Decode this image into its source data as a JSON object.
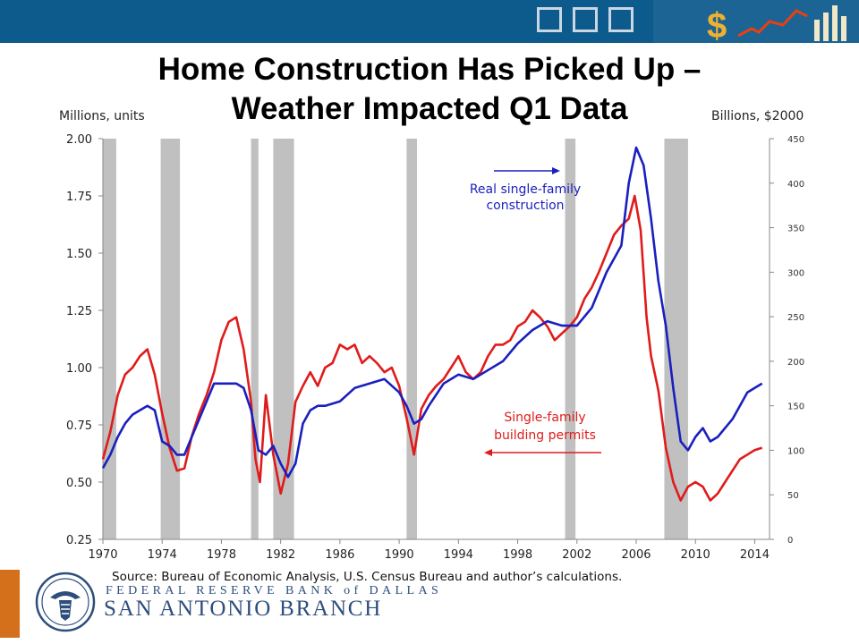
{
  "title_line1": "Home Construction Has Picked Up –",
  "title_line2": "Weather Impacted Q1 Data",
  "source": "Source: Bureau of Economic Analysis, U.S. Census Bureau and author’s calculations.",
  "footer": {
    "bank_name": "FEDERAL RESERVE BANK of DALLAS",
    "branch_name": "SAN ANTONIO BRANCH"
  },
  "colors": {
    "header_band": "#0d5a8c",
    "permits": "#e01b1b",
    "construction": "#1a1fbf",
    "recession": "#c0c0c0",
    "logo": "#2d4e7c"
  },
  "chart_data": {
    "type": "line",
    "left_axis_label": "Millions, units",
    "right_axis_label": "Billions, $2000",
    "x_range": [
      1970,
      2015
    ],
    "x_ticks": [
      "1970",
      "1974",
      "1978",
      "1982",
      "1986",
      "1990",
      "1994",
      "1998",
      "2002",
      "2006",
      "2010",
      "2014"
    ],
    "ylim_left": [
      0.25,
      2.0
    ],
    "y_ticks_left": [
      "0.25",
      "0.50",
      "0.75",
      "1.00",
      "1.25",
      "1.50",
      "1.75",
      "2.00"
    ],
    "ylim_right": [
      0,
      450
    ],
    "y_ticks_right": [
      "0",
      "50",
      "100",
      "150",
      "200",
      "250",
      "300",
      "350",
      "400",
      "450"
    ],
    "grid": false,
    "recession_periods": [
      [
        1970.0,
        1970.9
      ],
      [
        1973.9,
        1975.2
      ],
      [
        1980.0,
        1980.5
      ],
      [
        1981.5,
        1982.9
      ],
      [
        1990.5,
        1991.2
      ],
      [
        2001.2,
        2001.9
      ],
      [
        2007.9,
        2009.5
      ]
    ],
    "annotations": [
      {
        "text": "Real single-family construction",
        "arrow": "right"
      },
      {
        "text": "Single-family building permits",
        "arrow": "left"
      }
    ],
    "series": [
      {
        "name": "Single-family building permits",
        "axis": "left",
        "x": [
          1970.0,
          1970.5,
          1971.0,
          1971.5,
          1972.0,
          1972.5,
          1973.0,
          1973.5,
          1974.0,
          1974.5,
          1975.0,
          1975.5,
          1976.0,
          1976.5,
          1977.0,
          1977.5,
          1978.0,
          1978.5,
          1979.0,
          1979.5,
          1980.0,
          1980.3,
          1980.6,
          1981.0,
          1981.5,
          1982.0,
          1982.5,
          1983.0,
          1983.5,
          1984.0,
          1984.5,
          1985.0,
          1985.5,
          1986.0,
          1986.5,
          1987.0,
          1987.5,
          1988.0,
          1988.5,
          1989.0,
          1989.5,
          1990.0,
          1990.5,
          1991.0,
          1991.5,
          1992.0,
          1992.5,
          1993.0,
          1993.5,
          1994.0,
          1994.5,
          1995.0,
          1995.5,
          1996.0,
          1996.5,
          1997.0,
          1997.5,
          1998.0,
          1998.5,
          1999.0,
          1999.5,
          2000.0,
          2000.5,
          2001.0,
          2001.5,
          2002.0,
          2002.5,
          2003.0,
          2003.5,
          2004.0,
          2004.5,
          2005.0,
          2005.5,
          2005.9,
          2006.3,
          2006.7,
          2007.0,
          2007.5,
          2008.0,
          2008.5,
          2009.0,
          2009.5,
          2010.0,
          2010.5,
          2011.0,
          2011.5,
          2012.0,
          2012.5,
          2013.0,
          2013.5,
          2014.0,
          2014.5
        ],
        "values": [
          0.6,
          0.72,
          0.88,
          0.97,
          1.0,
          1.05,
          1.08,
          0.97,
          0.8,
          0.65,
          0.55,
          0.56,
          0.7,
          0.8,
          0.88,
          0.98,
          1.12,
          1.2,
          1.22,
          1.08,
          0.85,
          0.6,
          0.5,
          0.88,
          0.62,
          0.45,
          0.58,
          0.85,
          0.92,
          0.98,
          0.92,
          1.0,
          1.02,
          1.1,
          1.08,
          1.1,
          1.02,
          1.05,
          1.02,
          0.98,
          1.0,
          0.92,
          0.78,
          0.62,
          0.82,
          0.88,
          0.92,
          0.95,
          1.0,
          1.05,
          0.98,
          0.95,
          0.98,
          1.05,
          1.1,
          1.1,
          1.12,
          1.18,
          1.2,
          1.25,
          1.22,
          1.18,
          1.12,
          1.15,
          1.18,
          1.22,
          1.3,
          1.35,
          1.42,
          1.5,
          1.58,
          1.62,
          1.65,
          1.75,
          1.6,
          1.22,
          1.05,
          0.9,
          0.65,
          0.5,
          0.42,
          0.48,
          0.5,
          0.48,
          0.42,
          0.45,
          0.5,
          0.55,
          0.6,
          0.62,
          0.64,
          0.65
        ]
      },
      {
        "name": "Real single-family construction",
        "axis": "right",
        "x": [
          1970.0,
          1970.5,
          1971.0,
          1971.5,
          1972.0,
          1972.5,
          1973.0,
          1973.5,
          1974.0,
          1974.5,
          1975.0,
          1975.5,
          1976.0,
          1976.5,
          1977.0,
          1977.5,
          1978.0,
          1978.5,
          1979.0,
          1979.5,
          1980.0,
          1980.5,
          1981.0,
          1981.5,
          1982.0,
          1982.5,
          1983.0,
          1983.5,
          1984.0,
          1984.5,
          1985.0,
          1986.0,
          1987.0,
          1988.0,
          1989.0,
          1990.0,
          1990.5,
          1991.0,
          1991.5,
          1992.0,
          1993.0,
          1994.0,
          1995.0,
          1996.0,
          1997.0,
          1998.0,
          1999.0,
          2000.0,
          2001.0,
          2002.0,
          2003.0,
          2004.0,
          2005.0,
          2005.5,
          2006.0,
          2006.5,
          2007.0,
          2007.5,
          2008.0,
          2008.5,
          2009.0,
          2009.5,
          2010.0,
          2010.5,
          2011.0,
          2011.5,
          2012.0,
          2012.5,
          2013.0,
          2013.5,
          2014.0,
          2014.5
        ],
        "values": [
          80,
          95,
          115,
          130,
          140,
          145,
          150,
          145,
          110,
          105,
          95,
          95,
          115,
          135,
          155,
          175,
          175,
          175,
          175,
          170,
          145,
          100,
          95,
          105,
          85,
          70,
          85,
          130,
          145,
          150,
          150,
          155,
          170,
          175,
          180,
          165,
          150,
          130,
          135,
          150,
          175,
          185,
          180,
          190,
          200,
          220,
          235,
          245,
          240,
          240,
          260,
          300,
          330,
          400,
          440,
          420,
          360,
          290,
          240,
          170,
          110,
          100,
          115,
          125,
          110,
          115,
          125,
          135,
          150,
          165,
          170,
          175
        ]
      }
    ]
  }
}
